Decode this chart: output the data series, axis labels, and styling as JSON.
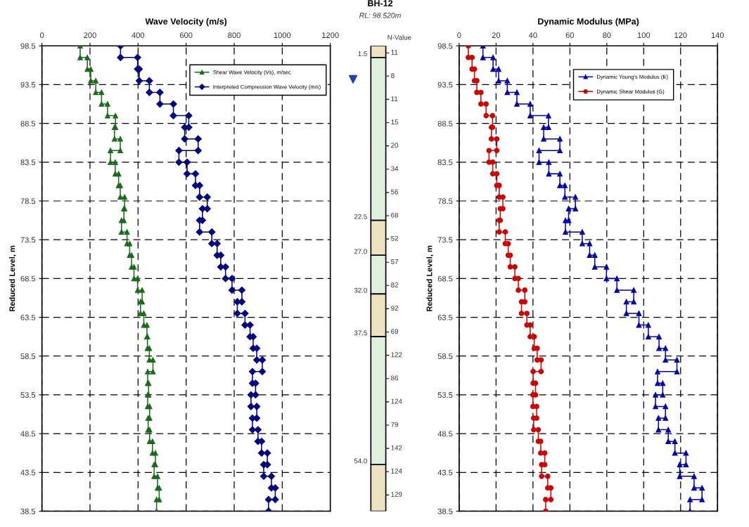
{
  "chart_data": [
    {
      "type": "line",
      "xlabel": "Wave Velocity (m/s)",
      "ylabel": "Reduced Level, m",
      "xlim": [
        0,
        1200
      ],
      "xticks": [
        0,
        200,
        400,
        600,
        800,
        1000,
        1200
      ],
      "ylim": [
        38.5,
        98.5
      ],
      "yticks": [
        98.5,
        93.5,
        88.5,
        83.5,
        78.5,
        73.5,
        68.5,
        63.5,
        58.5,
        53.5,
        48.5,
        43.5,
        38.5
      ],
      "grid": true,
      "legend": "top right",
      "line_style": "solid",
      "series": [
        {
          "name": "Shear Wave Velocity (Vs), m/sec",
          "color": "#1a6b1a",
          "marker": "triangle",
          "x": [
            159,
            159,
            189,
            189,
            203,
            203,
            224,
            224,
            248,
            248,
            273,
            273,
            306,
            306,
            302,
            302,
            326,
            326,
            285,
            285,
            305,
            305,
            319,
            319,
            326,
            326,
            344,
            344,
            341,
            341,
            331,
            331,
            354,
            354,
            365,
            365,
            373,
            373,
            383,
            383,
            398,
            398,
            417,
            417,
            410,
            410,
            424,
            424,
            437,
            437,
            439,
            439,
            447,
            447,
            462,
            462,
            440,
            440,
            444,
            444,
            440,
            440,
            448,
            448,
            442,
            442,
            448,
            448,
            460,
            460,
            472,
            472,
            467,
            467,
            481,
            481,
            488,
            488,
            477,
            477
          ],
          "values": [
            98.5,
            97,
            97,
            95.5,
            95.5,
            94,
            94,
            92.5,
            92.5,
            91,
            91,
            89.5,
            89.5,
            88,
            88,
            86.5,
            86.5,
            85,
            85,
            83.5,
            83.5,
            82,
            82,
            80.5,
            80.5,
            79,
            79,
            77.5,
            77.5,
            76,
            76,
            74.5,
            74.5,
            73,
            73,
            71.5,
            71.5,
            70,
            70,
            68.5,
            68.5,
            67,
            67,
            65.5,
            65.5,
            64,
            64,
            62.5,
            62.5,
            61,
            61,
            59.5,
            59.5,
            58,
            58,
            56.5,
            56.5,
            55,
            55,
            53.5,
            53.5,
            52,
            52,
            50.5,
            50.5,
            49,
            49,
            47.5,
            47.5,
            46,
            46,
            44.5,
            44.5,
            43,
            43,
            41.5,
            41.5,
            40,
            40,
            38.5
          ]
        },
        {
          "name": "Interpreted Compression Wave Velocity (m/s)",
          "color": "#000080",
          "marker": "diamond",
          "x": [
            327,
            327,
            398,
            398,
            405,
            405,
            447,
            447,
            491,
            491,
            547,
            547,
            611,
            611,
            594,
            594,
            650,
            650,
            570,
            570,
            604,
            604,
            639,
            639,
            656,
            656,
            688,
            688,
            668,
            668,
            656,
            656,
            707,
            707,
            729,
            729,
            744,
            744,
            764,
            764,
            791,
            791,
            832,
            832,
            813,
            813,
            845,
            845,
            866,
            866,
            879,
            879,
            894,
            894,
            917,
            917,
            876,
            876,
            889,
            889,
            870,
            870,
            894,
            894,
            876,
            876,
            899,
            899,
            914,
            914,
            938,
            938,
            923,
            923,
            955,
            955,
            971,
            971,
            943,
            943
          ],
          "values": [
            98.5,
            97,
            97,
            95.5,
            95.5,
            94,
            94,
            92.5,
            92.5,
            91,
            91,
            89.5,
            89.5,
            88,
            88,
            86.5,
            86.5,
            85,
            85,
            83.5,
            83.5,
            82,
            82,
            80.5,
            80.5,
            79,
            79,
            77.5,
            77.5,
            76,
            76,
            74.5,
            74.5,
            73,
            73,
            71.5,
            71.5,
            70,
            70,
            68.5,
            68.5,
            67,
            67,
            65.5,
            65.5,
            64,
            64,
            62.5,
            62.5,
            61,
            61,
            59.5,
            59.5,
            58,
            58,
            56.5,
            56.5,
            55,
            55,
            53.5,
            53.5,
            52,
            52,
            50.5,
            50.5,
            49,
            49,
            47.5,
            47.5,
            46,
            46,
            44.5,
            44.5,
            43,
            43,
            41.5,
            41.5,
            40,
            40,
            38.5
          ]
        }
      ]
    },
    {
      "type": "other",
      "title": "BH-12",
      "subtitle": "RL: 98.520m",
      "annotations": [
        "N-Value",
        "1.5",
        "22.5",
        "27.0",
        "32.0",
        "37.5",
        "54.0"
      ],
      "values": [
        11,
        8,
        11,
        15,
        20,
        34,
        56,
        68,
        52,
        57,
        82,
        92,
        69,
        122,
        86,
        124,
        79,
        142,
        124,
        129
      ],
      "data_labels": true
    },
    {
      "type": "line",
      "xlabel": "Dynamic Modulus (MPa)",
      "ylabel": "Reduced Level, m",
      "xlim": [
        0,
        140
      ],
      "xticks": [
        0,
        20,
        40,
        60,
        80,
        100,
        120,
        140
      ],
      "ylim": [
        38.5,
        98.5
      ],
      "yticks": [
        98.5,
        93.5,
        88.5,
        83.5,
        78.5,
        73.5,
        68.5,
        63.5,
        58.5,
        53.5,
        48.5,
        43.5,
        38.5
      ],
      "grid": true,
      "legend": "top right",
      "line_style": "solid",
      "series": [
        {
          "name": "Dynamic Young's Modulus (E)",
          "color": "#0000b0",
          "marker": "triangle",
          "x": [
            12.9,
            12.9,
            18.4,
            18.4,
            21.4,
            21.4,
            26.1,
            26.1,
            31.3,
            31.3,
            38.5,
            38.5,
            48.4,
            48.4,
            45.8,
            45.8,
            54.6,
            54.6,
            43.3,
            43.3,
            48.6,
            48.6,
            54.6,
            54.6,
            57.3,
            57.3,
            63.0,
            63.0,
            59.3,
            59.3,
            57.6,
            57.6,
            66.7,
            66.7,
            70.7,
            70.7,
            73.5,
            73.5,
            79.8,
            79.8,
            85.5,
            85.5,
            94.6,
            94.6,
            90.6,
            90.6,
            97.4,
            97.4,
            102.5,
            102.5,
            108.3,
            108.3,
            111.8,
            111.8,
            118.0,
            118.0,
            107.5,
            107.5,
            110.3,
            110.3,
            106.4,
            106.4,
            111.8,
            111.8,
            108.0,
            108.0,
            113.3,
            113.3,
            116.9,
            116.9,
            122.9,
            122.9,
            119.5,
            119.5,
            127.3,
            127.3,
            131.6,
            131.6,
            125.1,
            125.1
          ],
          "values": [
            98.5,
            97,
            97,
            95.5,
            95.5,
            94,
            94,
            92.5,
            92.5,
            91,
            91,
            89.5,
            89.5,
            88,
            88,
            86.5,
            86.5,
            85,
            85,
            83.5,
            83.5,
            82,
            82,
            80.5,
            80.5,
            79,
            79,
            77.5,
            77.5,
            76,
            76,
            74.5,
            74.5,
            73,
            73,
            71.5,
            71.5,
            70,
            70,
            68.5,
            68.5,
            67,
            67,
            65.5,
            65.5,
            64,
            64,
            62.5,
            62.5,
            61,
            61,
            59.5,
            59.5,
            58,
            58,
            56.5,
            56.5,
            55,
            55,
            53.5,
            53.5,
            52,
            52,
            50.5,
            50.5,
            49,
            49,
            47.5,
            47.5,
            46,
            46,
            44.5,
            44.5,
            43,
            43,
            41.5,
            41.5,
            40,
            40,
            38.5
          ]
        },
        {
          "name": "Dynamic Shear Modulus (G)",
          "color": "#d00000",
          "marker": "circle",
          "x": [
            5,
            5,
            7,
            7,
            8.3,
            8.3,
            9.6,
            9.6,
            11.8,
            11.8,
            14.6,
            14.6,
            18.1,
            18.1,
            17.5,
            17.5,
            20.4,
            20.4,
            16.2,
            16.2,
            18.2,
            18.2,
            20.4,
            20.4,
            21.7,
            21.7,
            23.7,
            23.7,
            22.3,
            22.3,
            21.7,
            21.7,
            25,
            25,
            26.6,
            26.6,
            27.7,
            27.7,
            30.2,
            30.2,
            32.1,
            32.1,
            35.6,
            35.6,
            33.8,
            33.8,
            36.7,
            36.7,
            38.5,
            38.5,
            40.7,
            40.7,
            42.3,
            42.3,
            44.4,
            44.4,
            40.1,
            40.1,
            41.4,
            41.4,
            40.0,
            40.0,
            42.0,
            42.0,
            40.4,
            40.4,
            42.9,
            42.9,
            44.2,
            44.2,
            46.4,
            46.4,
            44.7,
            44.7,
            48.0,
            48.0,
            49.7,
            49.7,
            46.9,
            46.9
          ],
          "values": [
            98.5,
            97,
            97,
            95.5,
            95.5,
            94,
            94,
            92.5,
            92.5,
            91,
            91,
            89.5,
            89.5,
            88,
            88,
            86.5,
            86.5,
            85,
            85,
            83.5,
            83.5,
            82,
            82,
            80.5,
            80.5,
            79,
            79,
            77.5,
            77.5,
            76,
            76,
            74.5,
            74.5,
            73,
            73,
            71.5,
            71.5,
            70,
            70,
            68.5,
            68.5,
            67,
            67,
            65.5,
            65.5,
            64,
            64,
            62.5,
            62.5,
            61,
            61,
            59.5,
            59.5,
            58,
            58,
            56.5,
            56.5,
            55,
            55,
            53.5,
            53.5,
            52,
            52,
            50.5,
            50.5,
            49,
            49,
            47.5,
            47.5,
            46,
            46,
            44.5,
            44.5,
            43,
            43,
            41.5,
            41.5,
            40,
            40,
            38.5
          ]
        }
      ]
    }
  ]
}
